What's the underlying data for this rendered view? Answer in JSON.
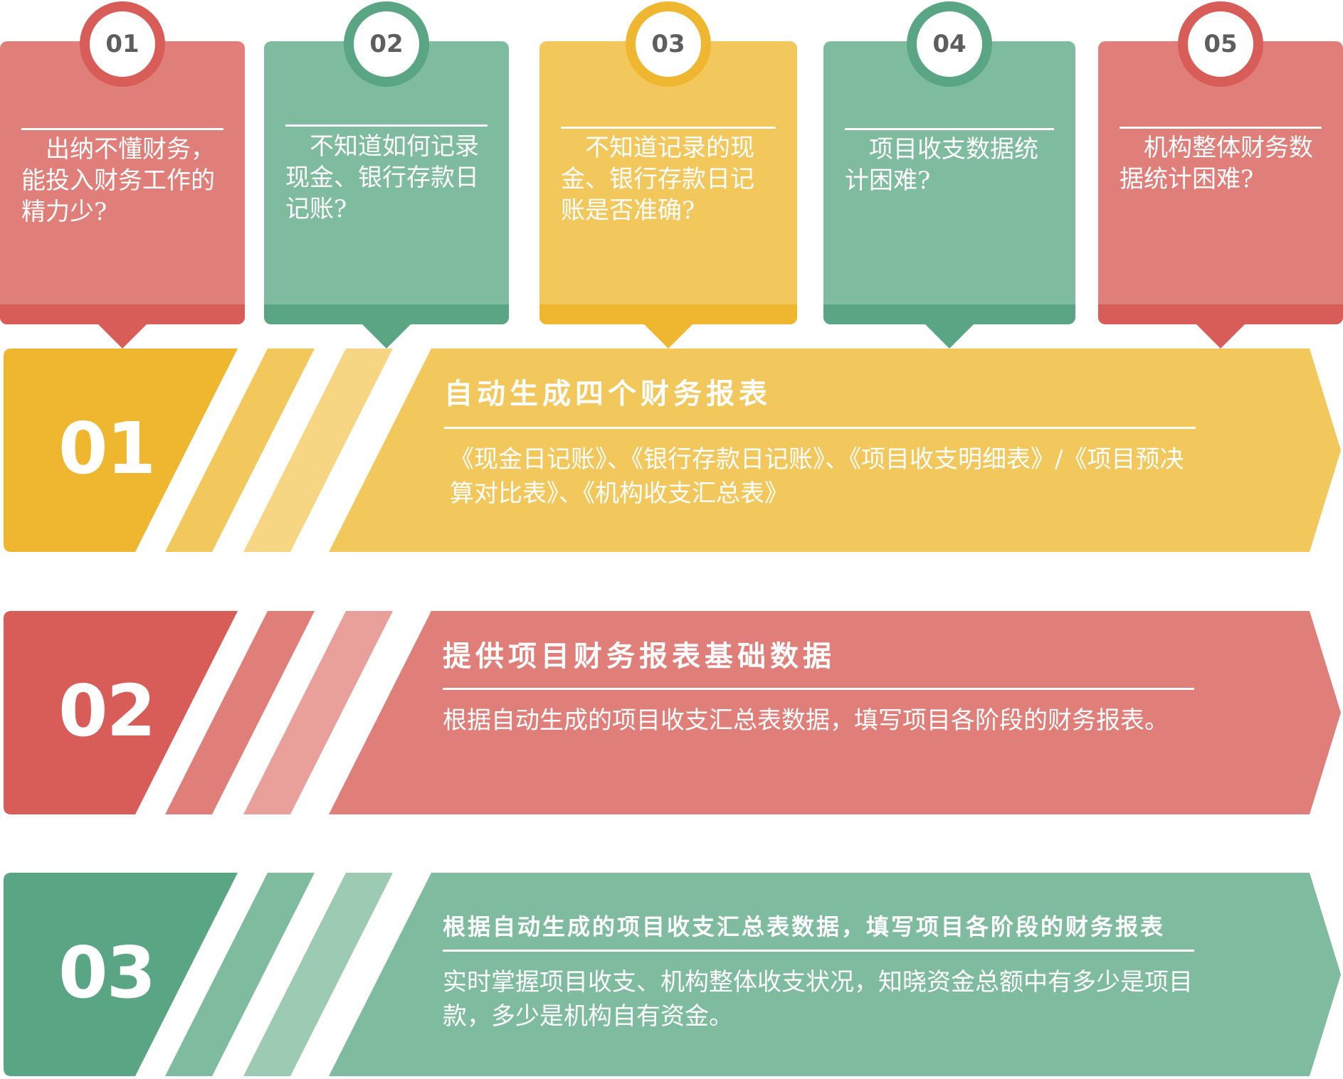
{
  "colors": {
    "red_light": "#e07f79",
    "red_dark": "#d85c57",
    "red_faint": "#e9a09b",
    "green_light": "#7fbb9e",
    "green_dark": "#5aa584",
    "green_faint": "#9dcab2",
    "yellow_light": "#f2c85c",
    "yellow_dark": "#efb630",
    "yellow_faint": "#f6d683"
  },
  "cards": [
    {
      "number": "01",
      "text": "出纳不懂财务，能投入财务工作的精力少?",
      "theme": "red"
    },
    {
      "number": "02",
      "text": "不知道如何记录现金、银行存款日记账?",
      "theme": "green"
    },
    {
      "number": "03",
      "text": "不知道记录的现金、银行存款日记账是否准确?",
      "theme": "yellow"
    },
    {
      "number": "04",
      "text": "项目收支数据统计困难?",
      "theme": "green"
    },
    {
      "number": "05",
      "text": "机构整体财务数据统计困难?",
      "theme": "red"
    }
  ],
  "bands": [
    {
      "number": "01",
      "title": "自动生成四个财务报表",
      "desc": "《现金日记账》、《银行存款日记账》、《项目收支明细表》/《项目预决算对比表》、《机构收支汇总表》",
      "theme": "yellow"
    },
    {
      "number": "02",
      "title": "提供项目财务报表基础数据",
      "desc": "根据自动生成的项目收支汇总表数据，填写项目各阶段的财务报表。",
      "theme": "red"
    },
    {
      "number": "03",
      "title": "根据自动生成的项目收支汇总表数据，填写项目各阶段的财务报表",
      "desc": "实时掌握项目收支、机构整体收支状况，知晓资金总额中有多少是项目款，多少是机构自有资金。",
      "theme": "green"
    }
  ]
}
